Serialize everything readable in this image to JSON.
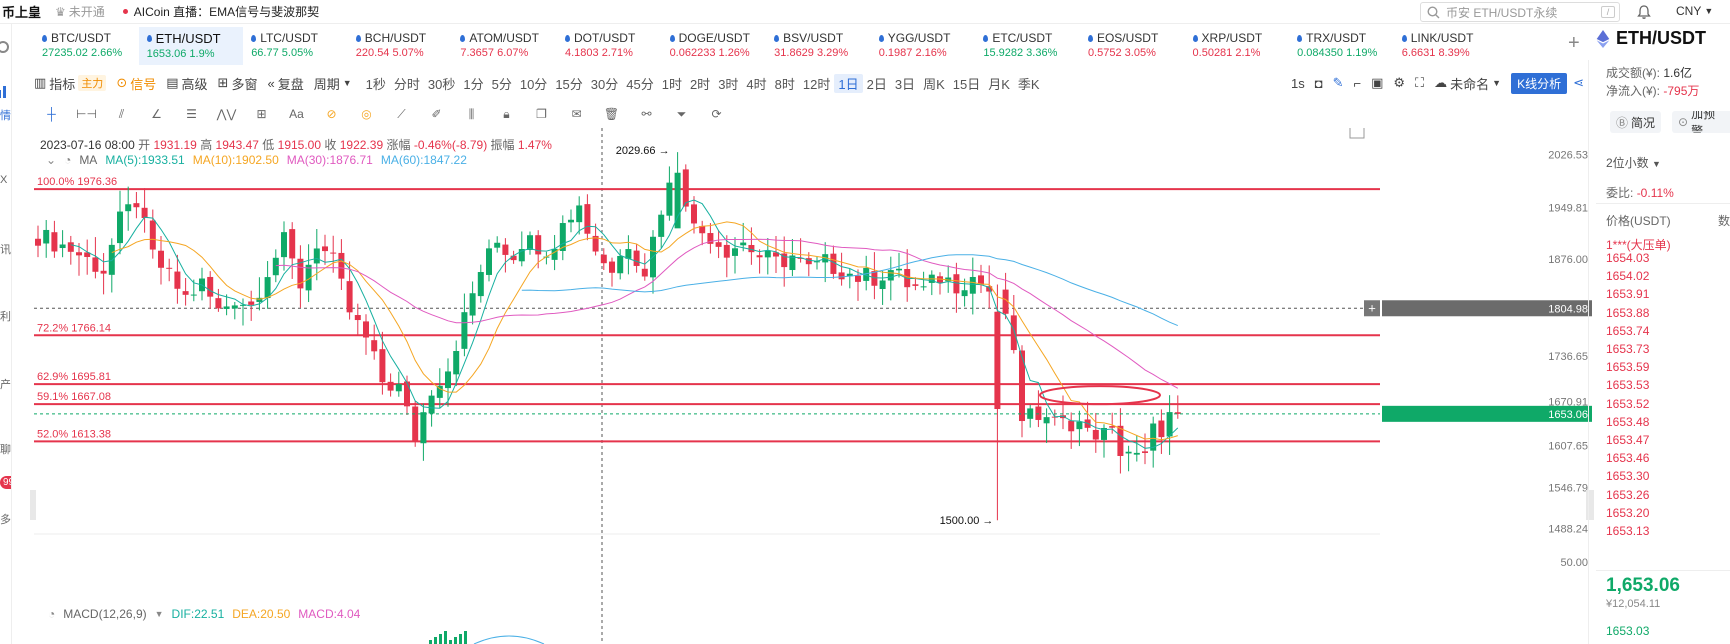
{
  "header": {
    "brand": "币上皇",
    "sub_status": "未开通",
    "live_text": "AICoin 直播：EMA信号与斐波那契",
    "search_placeholder": "币安 ETH/USDT永续",
    "search_shortcut": "/",
    "currency": "CNY"
  },
  "left_nav": {
    "items": [
      "情",
      "X",
      "讯",
      "利",
      "产",
      "聊",
      "多"
    ],
    "badge": "99+"
  },
  "tickers": [
    {
      "name": "BTC/USDT",
      "price": "27235.02",
      "change": "2.66%",
      "dir": "up"
    },
    {
      "name": "ETH/USDT",
      "price": "1653.06",
      "change": "1.9%",
      "dir": "up",
      "active": true
    },
    {
      "name": "LTC/USDT",
      "price": "66.77",
      "change": "5.05%",
      "dir": "up"
    },
    {
      "name": "BCH/USDT",
      "price": "220.54",
      "change": "5.07%",
      "dir": "dn"
    },
    {
      "name": "ATOM/USDT",
      "price": "7.3657",
      "change": "6.07%",
      "dir": "dn"
    },
    {
      "name": "DOT/USDT",
      "price": "4.1803",
      "change": "2.71%",
      "dir": "dn"
    },
    {
      "name": "DOGE/USDT",
      "price": "0.062233",
      "change": "1.26%",
      "dir": "dn"
    },
    {
      "name": "BSV/USDT",
      "price": "31.8629",
      "change": "3.29%",
      "dir": "dn"
    },
    {
      "name": "YGG/USDT",
      "price": "0.1987",
      "change": "2.16%",
      "dir": "dn"
    },
    {
      "name": "ETC/USDT",
      "price": "15.9282",
      "change": "3.36%",
      "dir": "up"
    },
    {
      "name": "EOS/USDT",
      "price": "0.5752",
      "change": "3.05%",
      "dir": "dn"
    },
    {
      "name": "XRP/USDT",
      "price": "0.50281",
      "change": "2.1%",
      "dir": "dn"
    },
    {
      "name": "TRX/USDT",
      "price": "0.084350",
      "change": "1.19%",
      "dir": "up"
    },
    {
      "name": "LINK/USDT",
      "price": "6.6631",
      "change": "8.39%",
      "dir": "dn"
    }
  ],
  "toolbar": {
    "indicator": "指标",
    "main_tag": "主力",
    "signal": "信号",
    "advanced": "高级",
    "multi": "多窗",
    "replay": "复盘",
    "period": "周期",
    "periods": [
      "1秒",
      "分时",
      "30秒",
      "1分",
      "5分",
      "10分",
      "15分",
      "30分",
      "45分",
      "1时",
      "2时",
      "3时",
      "4时",
      "8时",
      "12时",
      "1日",
      "2日",
      "3日",
      "周K",
      "15日",
      "月K",
      "季K"
    ],
    "selected_period": "1日",
    "interval_1s": "1s",
    "unnamed": "未命名",
    "kline_analysis": "K线分析"
  },
  "ohlc": {
    "date": "2023-07-16 08:00",
    "open_label": "开",
    "open": "1931.19",
    "high_label": "高",
    "high": "1943.47",
    "low_label": "低",
    "low": "1915.00",
    "close_label": "收",
    "close": "1922.39",
    "chg_label": "涨幅",
    "chg": "-0.46%(-8.79)",
    "amp_label": "振幅",
    "amp": "1.47%"
  },
  "ma_legend": {
    "label": "MA",
    "ma5": "MA(5):1933.51",
    "ma10": "MA(10):1902.50",
    "ma30": "MA(30):1876.71",
    "ma60": "MA(60):1847.22",
    "colors": {
      "ma5": "#17b0a0",
      "ma10": "#f5a623",
      "ma30": "#e05ac0",
      "ma60": "#4ab0e6"
    }
  },
  "macd_legend": {
    "label": "MACD(12,26,9)",
    "dif": "DIF:22.51",
    "dea": "DEA:20.50",
    "macd": "MACD:4.04"
  },
  "chart_data": {
    "type": "candlestick",
    "y_axis_ticks": [
      "2026.53",
      "1949.81",
      "1876.00",
      "1804.98",
      "1736.65",
      "1670.91",
      "1607.65",
      "1546.79",
      "1488.24"
    ],
    "ylim": [
      1460,
      2050
    ],
    "macd_axis_tick": "50.00",
    "current_price": "1653.06",
    "crosshair_price": "1804.98",
    "high_marker": "2029.66",
    "low_marker": "1500.00",
    "fib_levels": [
      {
        "label": "100.0% 1976.36",
        "value": 1976.36
      },
      {
        "label": "72.2% 1766.14",
        "value": 1766.14
      },
      {
        "label": "62.9% 1695.81",
        "value": 1695.81
      },
      {
        "label": "59.1% 1667.08",
        "value": 1667.08
      },
      {
        "label": "52.0% 1613.38",
        "value": 1613.38
      }
    ],
    "colors": {
      "up": "#0fa968",
      "down": "#e5344c",
      "fib": "#e5344c"
    }
  },
  "right_panel": {
    "symbol": "ETH/USDT",
    "volume_label": "成交额(¥):",
    "volume": "1.6亿",
    "inflow_label": "净流入(¥):",
    "inflow": "-795万",
    "btn_brief": "简况",
    "btn_alert": "加预警",
    "decimals": "2位小数",
    "ratio_label": "委比:",
    "ratio": "-0.11%",
    "price_header": "价格(USDT)",
    "qty_header": "数",
    "big_order": "1***(大压单)",
    "asks": [
      "1654.03",
      "1654.02",
      "1653.91",
      "1653.88",
      "1653.74",
      "1653.73",
      "1653.59",
      "1653.53",
      "1653.52",
      "1653.48",
      "1653.47",
      "1653.46",
      "1653.30",
      "1653.26",
      "1653.20",
      "1653.13"
    ],
    "last_price": "1,653.06",
    "last_cny": "¥12,054.11",
    "bid_first": "1653.03"
  }
}
